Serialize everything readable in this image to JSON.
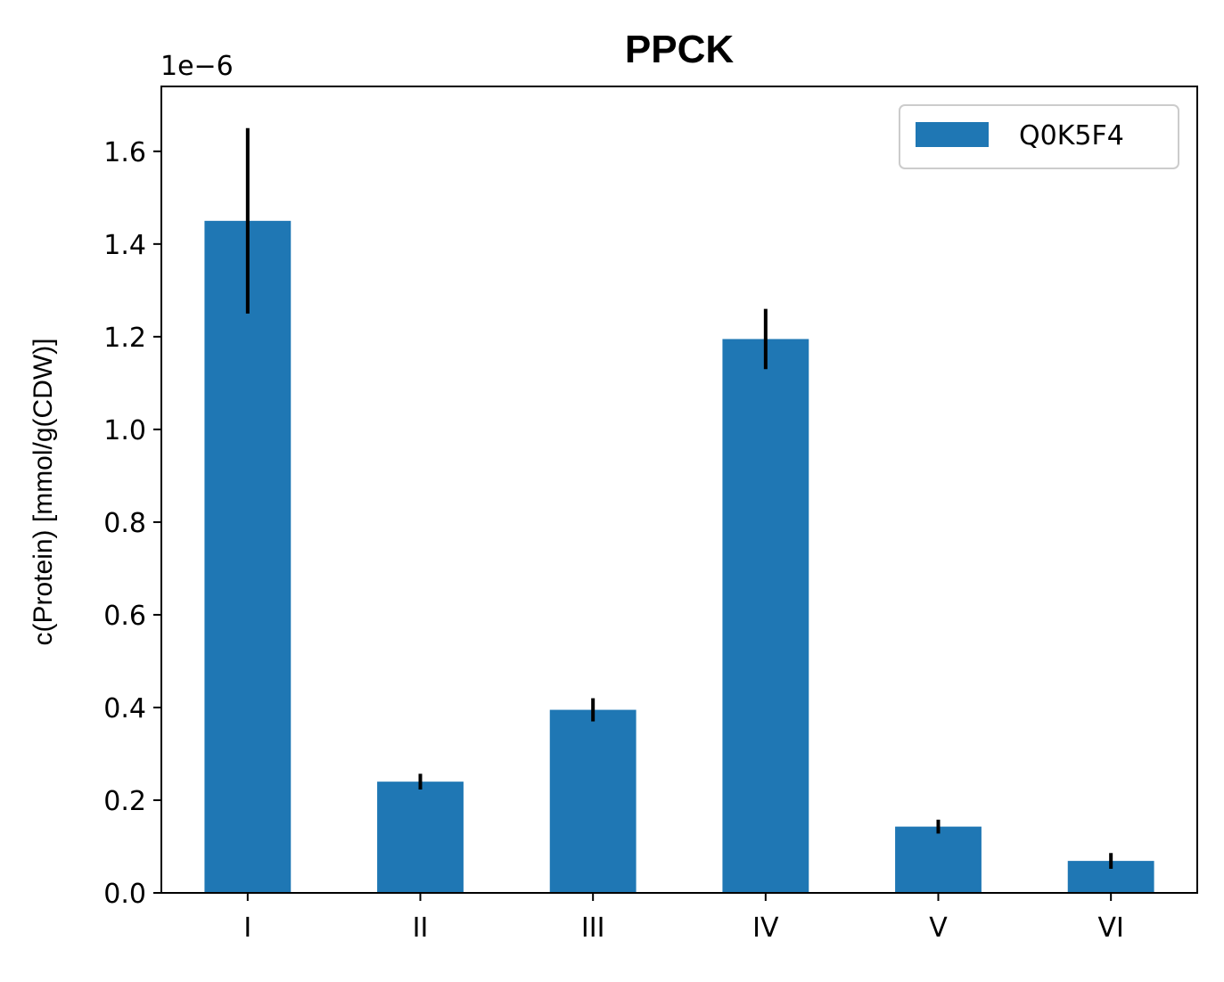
{
  "chart_data": {
    "type": "bar",
    "title": "PPCK",
    "xlabel": "",
    "ylabel": "c(Protein) [mmol/g(CDW)]",
    "offset_text": "1e−6",
    "categories": [
      "I",
      "II",
      "III",
      "IV",
      "V",
      "VI"
    ],
    "series": [
      {
        "name": "Q0K5F4",
        "values": [
          1.45,
          0.24,
          0.395,
          1.195,
          0.143,
          0.069
        ],
        "errors": [
          0.2,
          0.017,
          0.025,
          0.065,
          0.015,
          0.017
        ],
        "color": "#1f77b4"
      }
    ],
    "ylim": [
      0,
      1.74
    ],
    "yticks": [
      0.0,
      0.2,
      0.4,
      0.6,
      0.8,
      1.0,
      1.2,
      1.4,
      1.6
    ],
    "ytick_labels": [
      "0.0",
      "0.2",
      "0.4",
      "0.6",
      "0.8",
      "1.0",
      "1.2",
      "1.4",
      "1.6"
    ],
    "legend_position": "upper right",
    "grid": false
  }
}
